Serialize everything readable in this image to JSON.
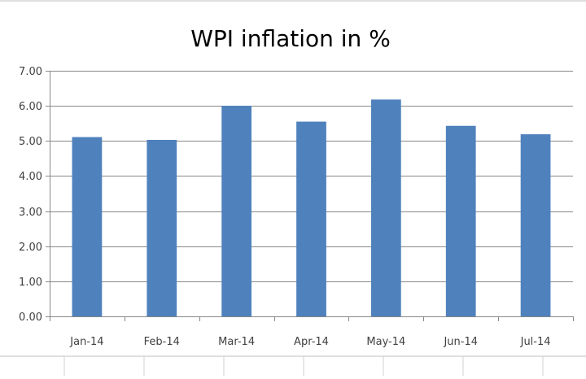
{
  "chart_data": {
    "type": "bar",
    "title": "WPI inflation in %",
    "categories": [
      "Jan-14",
      "Feb-14",
      "Mar-14",
      "Apr-14",
      "May-14",
      "Jun-14",
      "Jul-14"
    ],
    "values": [
      5.11,
      5.03,
      6.0,
      5.55,
      6.18,
      5.43,
      5.19
    ],
    "ylim": [
      0,
      7
    ],
    "yticks": [
      "0.00",
      "1.00",
      "2.00",
      "3.00",
      "4.00",
      "5.00",
      "6.00",
      "7.00"
    ],
    "xlabel": "",
    "ylabel": "",
    "grid": true,
    "legend": "none",
    "colors": {
      "bar": "#4f81bd",
      "grid": "#888888",
      "axis": "#888888",
      "frame": "#bfbfbf"
    }
  }
}
